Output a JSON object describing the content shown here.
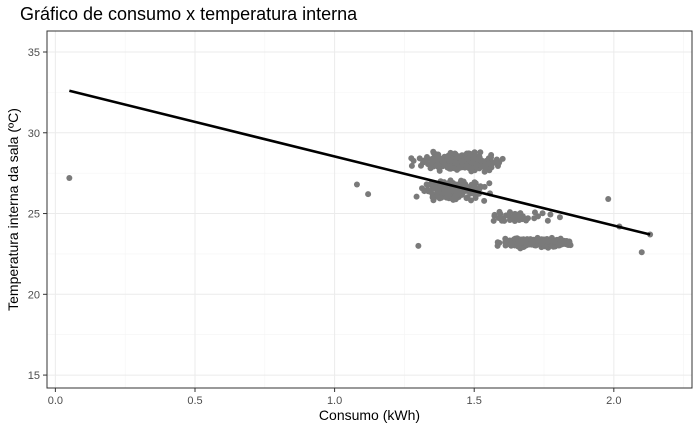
{
  "chart_data": {
    "type": "scatter",
    "title": "Gráfico de consumo x temperatura interna",
    "xlabel": "Consumo (kWh)",
    "ylabel": "Temperatura interna da sala (ºC)",
    "xlim": [
      -0.03,
      2.28
    ],
    "ylim": [
      14.2,
      36.3
    ],
    "x_ticks": [
      0.0,
      0.5,
      1.0,
      1.5,
      2.0
    ],
    "x_tick_labels": [
      "0.0",
      "0.5",
      "1.0",
      "1.5",
      "2.0"
    ],
    "y_ticks": [
      15,
      20,
      25,
      30,
      35
    ],
    "y_tick_labels": [
      "15",
      "20",
      "25",
      "30",
      "35"
    ],
    "grid": true,
    "point_color": "#7a7a7a",
    "line_color": "#000000",
    "trend_line": {
      "x": [
        0.05,
        2.13
      ],
      "y": [
        32.6,
        23.7
      ]
    },
    "clusters": [
      {
        "x_center": 1.45,
        "x_spread": 0.22,
        "y_center": 28.2,
        "y_spread": 0.8,
        "count": 260
      },
      {
        "x_center": 1.42,
        "x_spread": 0.18,
        "y_center": 26.4,
        "y_spread": 1.0,
        "count": 160
      },
      {
        "x_center": 1.72,
        "x_spread": 0.18,
        "y_center": 23.2,
        "y_spread": 0.5,
        "count": 200
      },
      {
        "x_center": 1.65,
        "x_spread": 0.2,
        "y_center": 24.8,
        "y_spread": 0.6,
        "count": 40
      }
    ],
    "outliers": [
      {
        "x": 0.05,
        "y": 27.2
      },
      {
        "x": 2.13,
        "y": 23.7
      },
      {
        "x": 2.1,
        "y": 22.6
      },
      {
        "x": 1.3,
        "y": 23.0
      },
      {
        "x": 1.08,
        "y": 26.8
      },
      {
        "x": 1.12,
        "y": 26.2
      },
      {
        "x": 2.02,
        "y": 24.2
      },
      {
        "x": 1.98,
        "y": 25.9
      }
    ]
  }
}
